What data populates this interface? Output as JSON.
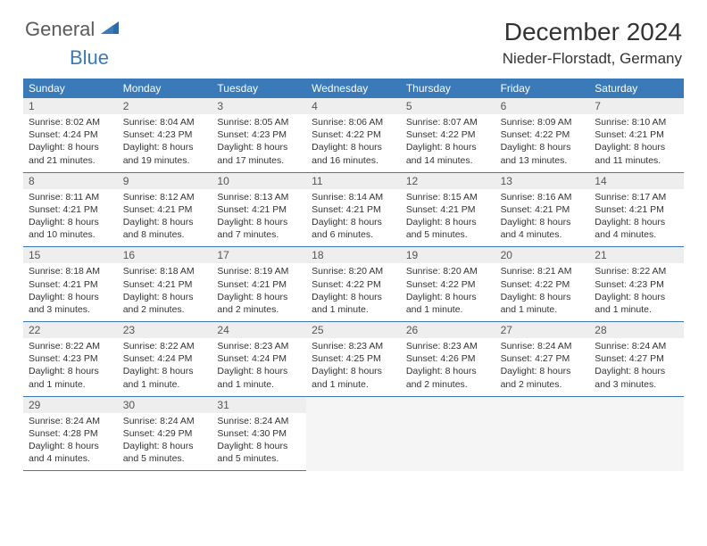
{
  "brand": {
    "text1": "General",
    "text2": "Blue"
  },
  "title": "December 2024",
  "location": "Nieder-Florstadt, Germany",
  "colors": {
    "header_bg": "#3a7ab8",
    "header_text": "#ffffff",
    "daynum_bg": "#eeeeee",
    "border": "#3a7ab8",
    "brand_gray": "#5a5a5a",
    "brand_blue": "#3a7ab8"
  },
  "weekdays": [
    "Sunday",
    "Monday",
    "Tuesday",
    "Wednesday",
    "Thursday",
    "Friday",
    "Saturday"
  ],
  "days": [
    {
      "n": 1,
      "sr": "8:02 AM",
      "ss": "4:24 PM",
      "dl": "8 hours and 21 minutes."
    },
    {
      "n": 2,
      "sr": "8:04 AM",
      "ss": "4:23 PM",
      "dl": "8 hours and 19 minutes."
    },
    {
      "n": 3,
      "sr": "8:05 AM",
      "ss": "4:23 PM",
      "dl": "8 hours and 17 minutes."
    },
    {
      "n": 4,
      "sr": "8:06 AM",
      "ss": "4:22 PM",
      "dl": "8 hours and 16 minutes."
    },
    {
      "n": 5,
      "sr": "8:07 AM",
      "ss": "4:22 PM",
      "dl": "8 hours and 14 minutes."
    },
    {
      "n": 6,
      "sr": "8:09 AM",
      "ss": "4:22 PM",
      "dl": "8 hours and 13 minutes."
    },
    {
      "n": 7,
      "sr": "8:10 AM",
      "ss": "4:21 PM",
      "dl": "8 hours and 11 minutes."
    },
    {
      "n": 8,
      "sr": "8:11 AM",
      "ss": "4:21 PM",
      "dl": "8 hours and 10 minutes."
    },
    {
      "n": 9,
      "sr": "8:12 AM",
      "ss": "4:21 PM",
      "dl": "8 hours and 8 minutes."
    },
    {
      "n": 10,
      "sr": "8:13 AM",
      "ss": "4:21 PM",
      "dl": "8 hours and 7 minutes."
    },
    {
      "n": 11,
      "sr": "8:14 AM",
      "ss": "4:21 PM",
      "dl": "8 hours and 6 minutes."
    },
    {
      "n": 12,
      "sr": "8:15 AM",
      "ss": "4:21 PM",
      "dl": "8 hours and 5 minutes."
    },
    {
      "n": 13,
      "sr": "8:16 AM",
      "ss": "4:21 PM",
      "dl": "8 hours and 4 minutes."
    },
    {
      "n": 14,
      "sr": "8:17 AM",
      "ss": "4:21 PM",
      "dl": "8 hours and 4 minutes."
    },
    {
      "n": 15,
      "sr": "8:18 AM",
      "ss": "4:21 PM",
      "dl": "8 hours and 3 minutes."
    },
    {
      "n": 16,
      "sr": "8:18 AM",
      "ss": "4:21 PM",
      "dl": "8 hours and 2 minutes."
    },
    {
      "n": 17,
      "sr": "8:19 AM",
      "ss": "4:21 PM",
      "dl": "8 hours and 2 minutes."
    },
    {
      "n": 18,
      "sr": "8:20 AM",
      "ss": "4:22 PM",
      "dl": "8 hours and 1 minute."
    },
    {
      "n": 19,
      "sr": "8:20 AM",
      "ss": "4:22 PM",
      "dl": "8 hours and 1 minute."
    },
    {
      "n": 20,
      "sr": "8:21 AM",
      "ss": "4:22 PM",
      "dl": "8 hours and 1 minute."
    },
    {
      "n": 21,
      "sr": "8:22 AM",
      "ss": "4:23 PM",
      "dl": "8 hours and 1 minute."
    },
    {
      "n": 22,
      "sr": "8:22 AM",
      "ss": "4:23 PM",
      "dl": "8 hours and 1 minute."
    },
    {
      "n": 23,
      "sr": "8:22 AM",
      "ss": "4:24 PM",
      "dl": "8 hours and 1 minute."
    },
    {
      "n": 24,
      "sr": "8:23 AM",
      "ss": "4:24 PM",
      "dl": "8 hours and 1 minute."
    },
    {
      "n": 25,
      "sr": "8:23 AM",
      "ss": "4:25 PM",
      "dl": "8 hours and 1 minute."
    },
    {
      "n": 26,
      "sr": "8:23 AM",
      "ss": "4:26 PM",
      "dl": "8 hours and 2 minutes."
    },
    {
      "n": 27,
      "sr": "8:24 AM",
      "ss": "4:27 PM",
      "dl": "8 hours and 2 minutes."
    },
    {
      "n": 28,
      "sr": "8:24 AM",
      "ss": "4:27 PM",
      "dl": "8 hours and 3 minutes."
    },
    {
      "n": 29,
      "sr": "8:24 AM",
      "ss": "4:28 PM",
      "dl": "8 hours and 4 minutes."
    },
    {
      "n": 30,
      "sr": "8:24 AM",
      "ss": "4:29 PM",
      "dl": "8 hours and 5 minutes."
    },
    {
      "n": 31,
      "sr": "8:24 AM",
      "ss": "4:30 PM",
      "dl": "8 hours and 5 minutes."
    }
  ],
  "labels": {
    "sunrise": "Sunrise:",
    "sunset": "Sunset:",
    "daylight": "Daylight:"
  },
  "layout": {
    "total_cells": 35,
    "trailing_empty": 4
  }
}
